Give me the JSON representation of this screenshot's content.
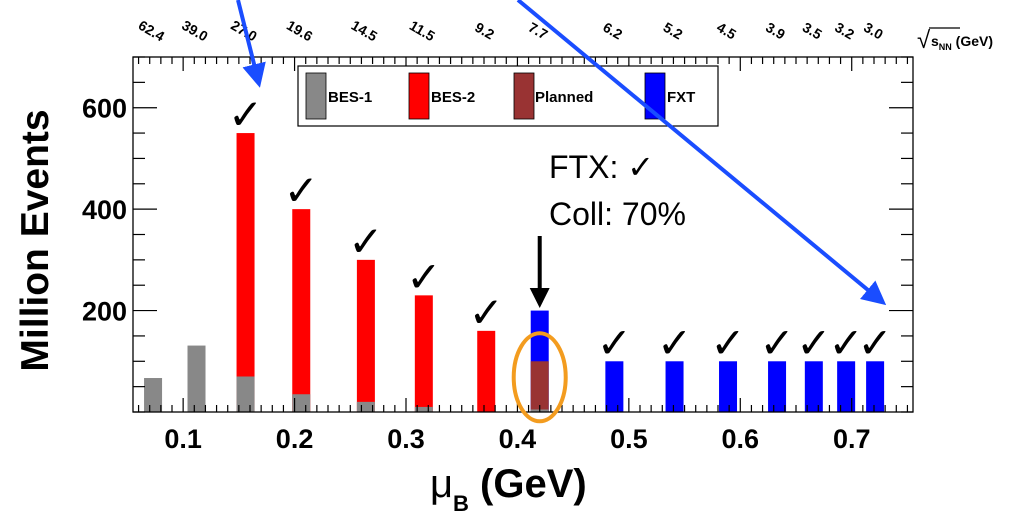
{
  "chart_data": {
    "type": "bar",
    "xlabel": "μ",
    "xlabel_sub": "B",
    "xlabel_unit": " (GeV)",
    "ylabel": "Million Events",
    "xlim": [
      0.055,
      0.755
    ],
    "ylim": [
      0,
      700
    ],
    "x_ticks": [
      0.1,
      0.2,
      0.3,
      0.4,
      0.5,
      0.6,
      0.7
    ],
    "x_tick_labels": [
      "0.1",
      "0.2",
      "0.3",
      "0.4",
      "0.5",
      "0.6",
      "0.7"
    ],
    "y_ticks": [
      200,
      400,
      600
    ],
    "y_tick_labels": [
      "200",
      "400",
      "600"
    ],
    "top_axis_label": "√s",
    "top_axis_label_sub": "NN",
    "top_axis_unit": " (GeV)",
    "top_axis_labels": [
      {
        "label": "62.4",
        "mu": 0.073
      },
      {
        "label": "39.0",
        "mu": 0.112
      },
      {
        "label": "27.0",
        "mu": 0.156
      },
      {
        "label": "19.6",
        "mu": 0.206
      },
      {
        "label": "14.5",
        "mu": 0.264
      },
      {
        "label": "11.5",
        "mu": 0.316
      },
      {
        "label": "9.2",
        "mu": 0.372
      },
      {
        "label": "7.7",
        "mu": 0.42
      },
      {
        "label": "6.2",
        "mu": 0.487
      },
      {
        "label": "5.2",
        "mu": 0.541
      },
      {
        "label": "4.5",
        "mu": 0.589
      },
      {
        "label": "3.9",
        "mu": 0.633
      },
      {
        "label": "3.5",
        "mu": 0.666
      },
      {
        "label": "3.2",
        "mu": 0.695
      },
      {
        "label": "3.0",
        "mu": 0.721
      }
    ],
    "series": [
      {
        "name": "BES-1",
        "color": "#888888",
        "points": [
          [
            0.073,
            67
          ],
          [
            0.112,
            131
          ],
          [
            0.156,
            70
          ],
          [
            0.206,
            35
          ],
          [
            0.264,
            20
          ],
          [
            0.316,
            10
          ],
          [
            0.42,
            5
          ]
        ]
      },
      {
        "name": "BES-2",
        "color": "#ff0000",
        "points": [
          [
            0.156,
            550
          ],
          [
            0.206,
            400
          ],
          [
            0.264,
            300
          ],
          [
            0.316,
            230
          ],
          [
            0.372,
            160
          ]
        ]
      },
      {
        "name": "Planned",
        "color": "#993333",
        "points": [
          [
            0.42,
            100
          ]
        ]
      },
      {
        "name": "FXT",
        "color": "#0000ff",
        "points": [
          [
            0.42,
            200
          ],
          [
            0.487,
            100
          ],
          [
            0.541,
            100
          ],
          [
            0.589,
            100
          ],
          [
            0.633,
            100
          ],
          [
            0.666,
            100
          ],
          [
            0.695,
            100
          ],
          [
            0.721,
            100
          ]
        ]
      }
    ],
    "checkmark": "✓",
    "checkmarks": [
      {
        "mu": 0.156,
        "value": 550
      },
      {
        "mu": 0.206,
        "value": 400
      },
      {
        "mu": 0.264,
        "value": 300
      },
      {
        "mu": 0.316,
        "value": 230
      },
      {
        "mu": 0.372,
        "value": 160
      },
      {
        "mu": 0.487,
        "value": 100
      },
      {
        "mu": 0.541,
        "value": 100
      },
      {
        "mu": 0.589,
        "value": 100
      },
      {
        "mu": 0.633,
        "value": 100
      },
      {
        "mu": 0.666,
        "value": 100
      },
      {
        "mu": 0.695,
        "value": 100
      },
      {
        "mu": 0.721,
        "value": 100
      }
    ],
    "annotation_lines": [
      "FTX: ✓",
      "Coll: 70%"
    ],
    "highlight": {
      "mu": 0.42,
      "value": 100,
      "color": "#f39c1f"
    },
    "arrow_color": "#1a4dff",
    "legend_placement": "top-center",
    "grid": false
  }
}
